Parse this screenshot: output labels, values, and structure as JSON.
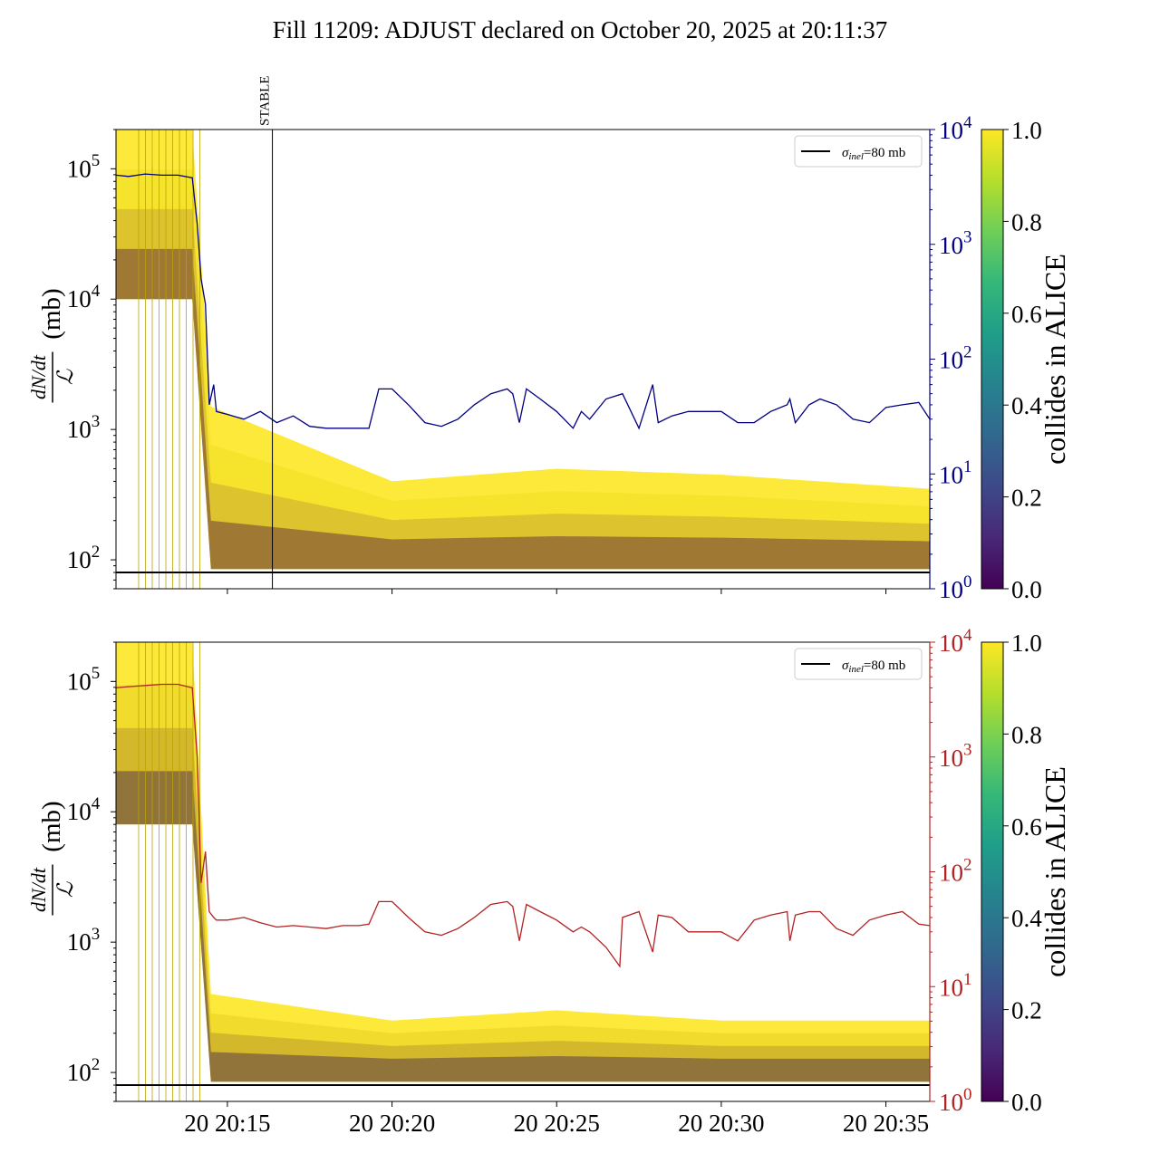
{
  "title": "Fill 11209: ADJUST declared on October 20, 2025 at 20:11:37",
  "colors": {
    "line_top": "#000080",
    "line_bottom": "#b22222",
    "reference_line": "#000000",
    "bands_top": [
      "#fde725",
      "#f0e020",
      "#c8a830",
      "#6b3a3a"
    ],
    "bands_bottom": [
      "#fde725",
      "#e8d020",
      "#b89b2a",
      "#5a3d45"
    ]
  },
  "chart_data": [
    {
      "type": "line",
      "panel": "top",
      "ylabel_num": "dN/dt",
      "ylabel_den": "ℒ",
      "ylabel_unit": "(mb)",
      "yscale": "log",
      "ylim": [
        60,
        200000
      ],
      "yticks": [
        100,
        1000,
        10000,
        100000
      ],
      "ytick_labels": [
        "10^2",
        "10^3",
        "10^4",
        "10^5"
      ],
      "y2scale": "log",
      "y2lim": [
        1,
        10000
      ],
      "y2ticks": [
        1,
        10,
        100,
        1000,
        10000
      ],
      "y2tick_labels": [
        "10^0",
        "10^1",
        "10^2",
        "10^3",
        "10^4"
      ],
      "xlim": [
        "20:11:37",
        "20:36:20"
      ],
      "xticks": [
        "20:15",
        "20:20",
        "20:25",
        "20:30",
        "20:35"
      ],
      "xtick_labels": [],
      "vline": {
        "x": "20:16:22",
        "label": "STABLE"
      },
      "legend": {
        "position": "top-right",
        "entries": [
          {
            "label_sym": "σ",
            "label_sub": "inel",
            "label_rest": "=80 mb"
          }
        ]
      },
      "reference_line": {
        "y": 80
      },
      "colorbar": {
        "label": "collides in ALICE",
        "range": [
          0.0,
          1.0
        ],
        "ticks": [
          "0.0",
          "0.2",
          "0.4",
          "0.6",
          "0.8",
          "1.0"
        ],
        "colormap": "viridis"
      },
      "series": [
        {
          "axis": "right",
          "x": [
            "20:11:37",
            "20:12:00",
            "20:12:30",
            "20:13:00",
            "20:13:30",
            "20:13:56",
            "20:14:05",
            "20:14:12",
            "20:14:20",
            "20:14:27",
            "20:14:35",
            "20:14:40",
            "20:15:00",
            "20:15:30",
            "20:16:00",
            "20:16:30",
            "20:17:00",
            "20:17:30",
            "20:18:00",
            "20:18:30",
            "20:19:00",
            "20:19:18",
            "20:19:36",
            "20:20:00",
            "20:20:30",
            "20:21:00",
            "20:21:30",
            "20:22:00",
            "20:22:30",
            "20:23:00",
            "20:23:30",
            "20:23:40",
            "20:23:52",
            "20:24:05",
            "20:24:30",
            "20:25:00",
            "20:25:30",
            "20:25:45",
            "20:26:00",
            "20:26:30",
            "20:27:00",
            "20:27:30",
            "20:27:55",
            "20:28:05",
            "20:28:30",
            "20:29:00",
            "20:29:30",
            "20:30:00",
            "20:30:30",
            "20:31:00",
            "20:31:30",
            "20:32:00",
            "20:32:05",
            "20:32:15",
            "20:32:40",
            "20:33:00",
            "20:33:30",
            "20:34:00",
            "20:34:30",
            "20:35:00",
            "20:35:30",
            "20:36:00",
            "20:36:20"
          ],
          "y": [
            4000,
            3900,
            4100,
            4000,
            4000,
            3800,
            1500,
            500,
            300,
            40,
            60,
            35,
            33,
            30,
            35,
            28,
            32,
            26,
            25,
            25,
            25,
            25,
            55,
            55,
            40,
            28,
            26,
            30,
            40,
            50,
            55,
            50,
            28,
            55,
            45,
            35,
            25,
            35,
            30,
            45,
            50,
            25,
            60,
            28,
            32,
            35,
            35,
            35,
            28,
            28,
            35,
            40,
            45,
            28,
            40,
            45,
            40,
            30,
            28,
            38,
            40,
            42,
            30
          ]
        }
      ],
      "bands": [
        {
          "x": [
            "20:11:37",
            "20:13:56",
            "20:14:30",
            "20:20:00",
            "20:25:00",
            "20:30:00",
            "20:36:20"
          ],
          "y_high": [
            200000,
            200000,
            1500,
            400,
            500,
            450,
            350
          ]
        },
        {
          "x": [
            "20:11:37",
            "20:13:56",
            "20:14:30",
            "20:20:00",
            "20:25:00",
            "20:30:00",
            "20:36:20"
          ],
          "y_low": [
            10000,
            10000,
            85,
            85,
            85,
            85,
            85
          ]
        }
      ]
    },
    {
      "type": "line",
      "panel": "bottom",
      "ylabel_num": "dN/dt",
      "ylabel_den": "ℒ",
      "ylabel_unit": "(mb)",
      "yscale": "log",
      "ylim": [
        60,
        200000
      ],
      "yticks": [
        100,
        1000,
        10000,
        100000
      ],
      "ytick_labels": [
        "10^2",
        "10^3",
        "10^4",
        "10^5"
      ],
      "y2scale": "log",
      "y2lim": [
        1,
        10000
      ],
      "y2ticks": [
        1,
        10,
        100,
        1000,
        10000
      ],
      "y2tick_labels": [
        "10^0",
        "10^1",
        "10^2",
        "10^3",
        "10^4"
      ],
      "xlim": [
        "20:11:37",
        "20:36:20"
      ],
      "xticks": [
        "20:15",
        "20:20",
        "20:25",
        "20:30",
        "20:35"
      ],
      "xtick_labels": [
        "20 20:15",
        "20 20:20",
        "20 20:25",
        "20 20:30",
        "20 20:35"
      ],
      "legend": {
        "position": "top-right",
        "entries": [
          {
            "label_sym": "σ",
            "label_sub": "inel",
            "label_rest": "=80 mb"
          }
        ]
      },
      "reference_line": {
        "y": 80
      },
      "colorbar": {
        "label": "collides in ALICE",
        "range": [
          0.0,
          1.0
        ],
        "ticks": [
          "0.0",
          "0.2",
          "0.4",
          "0.6",
          "0.8",
          "1.0"
        ],
        "colormap": "viridis"
      },
      "series": [
        {
          "axis": "right",
          "x": [
            "20:11:37",
            "20:12:00",
            "20:12:30",
            "20:13:00",
            "20:13:30",
            "20:13:56",
            "20:14:05",
            "20:14:12",
            "20:14:20",
            "20:14:27",
            "20:14:35",
            "20:14:40",
            "20:15:00",
            "20:15:30",
            "20:16:00",
            "20:16:30",
            "20:17:00",
            "20:17:30",
            "20:18:00",
            "20:18:30",
            "20:19:00",
            "20:19:18",
            "20:19:36",
            "20:20:00",
            "20:20:30",
            "20:21:00",
            "20:21:30",
            "20:22:00",
            "20:22:30",
            "20:23:00",
            "20:23:30",
            "20:23:40",
            "20:23:52",
            "20:24:05",
            "20:24:30",
            "20:25:00",
            "20:25:30",
            "20:25:45",
            "20:26:00",
            "20:26:30",
            "20:26:55",
            "20:27:00",
            "20:27:30",
            "20:27:55",
            "20:28:05",
            "20:28:30",
            "20:29:00",
            "20:29:30",
            "20:30:00",
            "20:30:30",
            "20:31:00",
            "20:31:30",
            "20:32:00",
            "20:32:05",
            "20:32:15",
            "20:32:40",
            "20:33:00",
            "20:33:30",
            "20:34:00",
            "20:34:30",
            "20:35:00",
            "20:35:30",
            "20:36:00",
            "20:36:20"
          ],
          "y": [
            4000,
            4100,
            4200,
            4300,
            4300,
            4000,
            1000,
            80,
            150,
            45,
            40,
            38,
            38,
            40,
            36,
            33,
            34,
            33,
            32,
            34,
            34,
            35,
            55,
            55,
            40,
            30,
            28,
            32,
            40,
            52,
            55,
            50,
            25,
            52,
            45,
            38,
            30,
            33,
            30,
            22,
            15,
            40,
            45,
            20,
            42,
            40,
            30,
            30,
            30,
            25,
            38,
            42,
            45,
            25,
            42,
            45,
            45,
            32,
            28,
            38,
            42,
            45,
            35,
            34
          ]
        }
      ],
      "bands": [
        {
          "x": [
            "20:11:37",
            "20:13:56",
            "20:14:30",
            "20:20:00",
            "20:25:00",
            "20:30:00",
            "20:36:20"
          ],
          "y_high": [
            200000,
            200000,
            400,
            250,
            300,
            250,
            250
          ]
        },
        {
          "x": [
            "20:11:37",
            "20:13:56",
            "20:14:30",
            "20:20:00",
            "20:25:00",
            "20:30:00",
            "20:36:20"
          ],
          "y_low": [
            8000,
            8000,
            85,
            85,
            85,
            85,
            85
          ]
        }
      ]
    }
  ]
}
